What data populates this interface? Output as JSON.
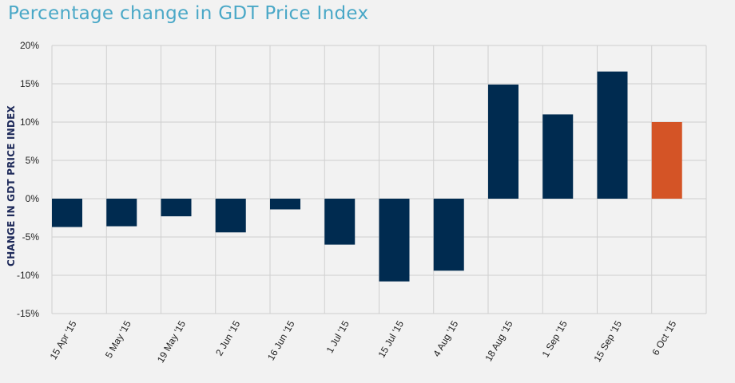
{
  "chart_data": {
    "type": "bar",
    "title": "Percentage change in GDT Price Index",
    "ylabel": "CHANGE IN GDT PRICE INDEX",
    "xlabel": "",
    "categories": [
      "15 Apr '15",
      "5 May '15",
      "19 May '15",
      "2 Jun '15",
      "16 Jun '15",
      "1 Jul '15",
      "15 Jul '15",
      "4 Aug '15",
      "18 Aug '15",
      "1 Sep '15",
      "15 Sep '15",
      "6 Oct '15"
    ],
    "values": [
      -3.7,
      -3.6,
      -2.3,
      -4.4,
      -1.4,
      -6.0,
      -10.8,
      -9.4,
      14.9,
      11.0,
      16.6,
      10.0
    ],
    "ylim": [
      -15,
      20
    ],
    "yticks": [
      20,
      15,
      10,
      5,
      0,
      -5,
      -10,
      -15
    ],
    "yticklabels": [
      "20%",
      "15%",
      "10%",
      "5%",
      "0%",
      "-5%",
      "-10%",
      "-15%"
    ],
    "grid": true,
    "colors": {
      "default": "#002b50",
      "highlight": "#d45426",
      "grid": "#cfcfcf",
      "title": "#4aa8c7"
    },
    "highlight_index": 11
  }
}
